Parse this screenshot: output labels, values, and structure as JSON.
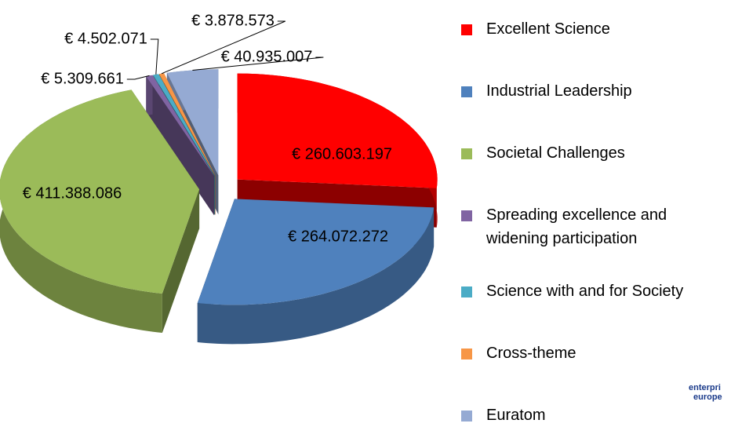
{
  "chart_data": {
    "type": "pie",
    "categories": [
      "Excellent Science",
      "Industrial Leadership",
      "Societal Challenges",
      "Spreading excellence and widening participation",
      "Science with and for Society",
      "Cross-theme",
      "Euratom"
    ],
    "values": [
      260603197,
      264072272,
      411388086,
      5309661,
      4502071,
      3878573,
      40935007
    ],
    "value_labels": [
      "€ 260.603.197",
      "€ 264.072.272",
      "€ 411.388.086",
      "€ 5.309.661",
      "€ 4.502.071",
      "€ 3.878.573",
      "€ 40.935.007"
    ],
    "colors": [
      "#ff0000",
      "#4f81bd",
      "#9bbb59",
      "#8064a2",
      "#4bacc6",
      "#f79646",
      "#95aad3"
    ],
    "legend": "right"
  },
  "logo": [
    "enterpri",
    "europe"
  ]
}
